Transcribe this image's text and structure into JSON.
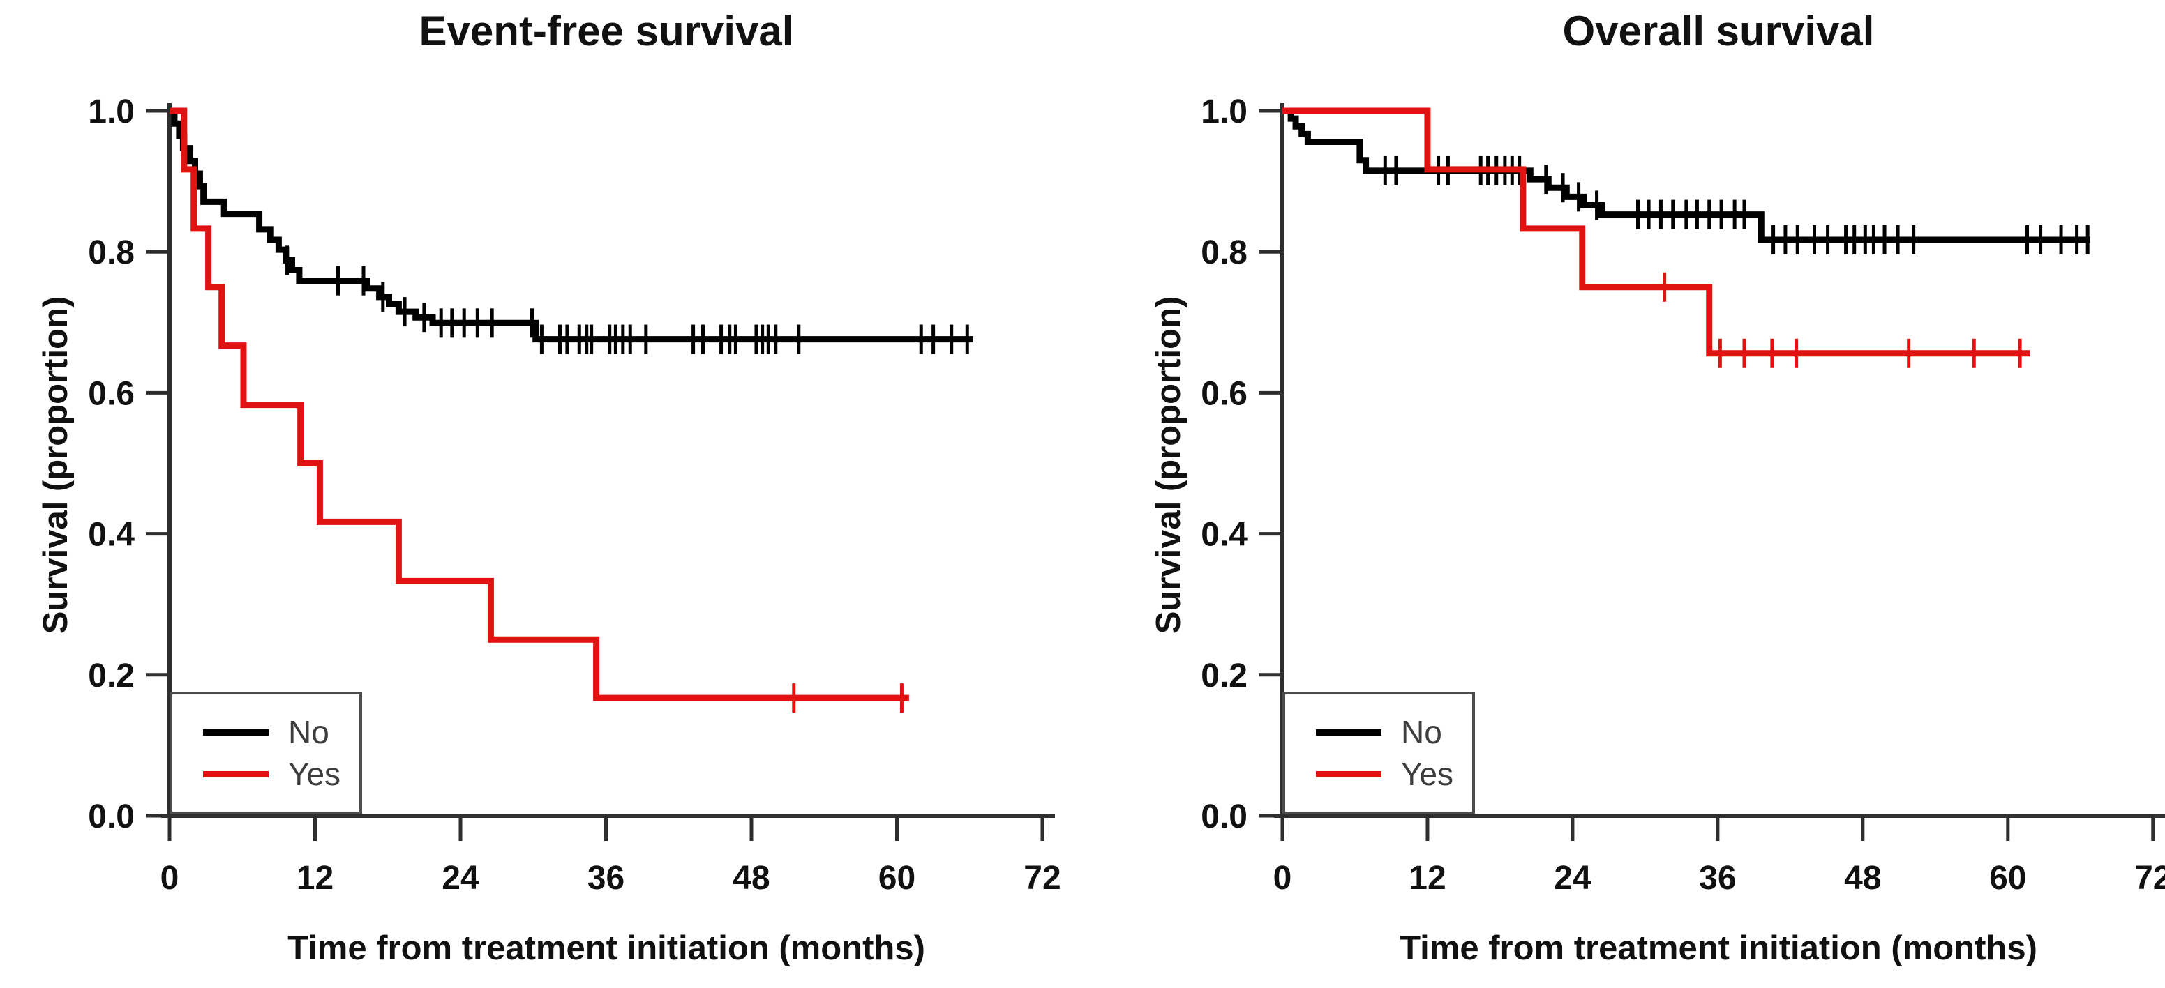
{
  "figure_type": "kaplan-meier-survival-figure",
  "colors": {
    "curve_no": "#000000",
    "curve_yes": "#e01212",
    "axis": "#2e2e2e",
    "tick_text": "#111111",
    "legend_border": "#4d4d4d",
    "legend_text": "#3d3d3d",
    "background": "#ffffff"
  },
  "legend": {
    "no_label": "No",
    "yes_label": "Yes"
  },
  "chart_data": [
    {
      "type": "line",
      "subtype": "kaplan-meier-step",
      "title": "Event-free survival",
      "xlabel": "Time from treatment initiation (months)",
      "ylabel": "Survival (proportion)",
      "xlim": [
        0,
        72
      ],
      "ylim": [
        0.0,
        1.0
      ],
      "xticks": [
        0,
        12,
        24,
        36,
        48,
        60,
        72
      ],
      "yticks": [
        0.0,
        0.2,
        0.4,
        0.6,
        0.8,
        1.0
      ],
      "grid": false,
      "legend_position": "bottom-left",
      "series": [
        {
          "name": "No",
          "color": "#000000",
          "steps": [
            [
              0,
              1.0
            ],
            [
              0.4,
              0.982
            ],
            [
              0.8,
              0.964
            ],
            [
              1.2,
              0.947
            ],
            [
              1.7,
              0.929
            ],
            [
              2.1,
              0.911
            ],
            [
              2.5,
              0.893
            ],
            [
              2.8,
              0.871
            ],
            [
              4.5,
              0.854
            ],
            [
              7.4,
              0.832
            ],
            [
              8.3,
              0.817
            ],
            [
              9.0,
              0.803
            ],
            [
              9.6,
              0.788
            ],
            [
              10.1,
              0.774
            ],
            [
              10.7,
              0.759
            ],
            [
              16.3,
              0.748
            ],
            [
              17.3,
              0.736
            ],
            [
              18.1,
              0.726
            ],
            [
              18.9,
              0.715
            ],
            [
              20.3,
              0.707
            ],
            [
              21.7,
              0.699
            ],
            [
              30.2,
              0.676
            ]
          ],
          "end_time": 66.3,
          "censor_times": [
            1.0,
            9.7,
            13.9,
            16.0,
            17.6,
            19.4,
            21.0,
            22.4,
            23.3,
            24.3,
            25.4,
            26.6,
            29.9,
            30.7,
            32.2,
            32.8,
            33.8,
            34.4,
            34.8,
            36.3,
            36.8,
            37.4,
            38.0,
            39.3,
            43.2,
            44.0,
            45.5,
            46.2,
            46.7,
            48.4,
            48.9,
            49.4,
            50.0,
            51.9,
            62.0,
            63.0,
            64.5,
            65.8
          ]
        },
        {
          "name": "Yes",
          "color": "#e01212",
          "steps": [
            [
              0,
              1.0
            ],
            [
              1.2,
              0.917
            ],
            [
              2.0,
              0.833
            ],
            [
              3.2,
              0.75
            ],
            [
              4.3,
              0.667
            ],
            [
              6.1,
              0.583
            ],
            [
              10.8,
              0.5
            ],
            [
              12.4,
              0.417
            ],
            [
              18.9,
              0.333
            ],
            [
              26.5,
              0.25
            ],
            [
              35.2,
              0.167
            ]
          ],
          "end_time": 61.0,
          "censor_times": [
            51.5,
            60.4
          ]
        }
      ]
    },
    {
      "type": "line",
      "subtype": "kaplan-meier-step",
      "title": "Overall survival",
      "xlabel": "Time from treatment initiation (months)",
      "ylabel": "Survival (proportion)",
      "xlim": [
        0,
        72
      ],
      "ylim": [
        0.0,
        1.0
      ],
      "xticks": [
        0,
        12,
        24,
        36,
        48,
        60,
        72
      ],
      "yticks": [
        0.0,
        0.2,
        0.4,
        0.6,
        0.8,
        1.0
      ],
      "grid": false,
      "legend_position": "bottom-left",
      "series": [
        {
          "name": "No",
          "color": "#000000",
          "steps": [
            [
              0,
              1.0
            ],
            [
              0.7,
              0.989
            ],
            [
              1.1,
              0.978
            ],
            [
              1.6,
              0.967
            ],
            [
              2.1,
              0.956
            ],
            [
              6.4,
              0.93
            ],
            [
              6.9,
              0.915
            ],
            [
              20.5,
              0.903
            ],
            [
              22.0,
              0.891
            ],
            [
              23.5,
              0.878
            ],
            [
              24.9,
              0.866
            ],
            [
              26.4,
              0.853
            ],
            [
              39.6,
              0.817
            ]
          ],
          "end_time": 66.8,
          "censor_times": [
            8.5,
            9.4,
            12.9,
            13.7,
            16.4,
            17.0,
            17.7,
            18.4,
            19.0,
            19.6,
            21.8,
            23.2,
            24.5,
            26.0,
            29.4,
            30.3,
            31.3,
            32.3,
            33.4,
            34.3,
            35.3,
            36.3,
            37.4,
            38.2,
            40.6,
            41.6,
            42.6,
            44.0,
            45.1,
            46.6,
            47.3,
            48.2,
            48.9,
            49.8,
            50.9,
            52.2,
            61.6,
            62.7,
            64.4,
            65.7,
            66.6
          ]
        },
        {
          "name": "Yes",
          "color": "#e01212",
          "steps": [
            [
              0,
              1.0
            ],
            [
              12.0,
              0.917
            ],
            [
              19.9,
              0.833
            ],
            [
              24.8,
              0.75
            ],
            [
              35.3,
              0.656
            ]
          ],
          "end_time": 61.8,
          "censor_times": [
            31.6,
            36.2,
            38.2,
            40.5,
            42.5,
            51.8,
            57.2,
            61.0
          ]
        }
      ]
    }
  ]
}
